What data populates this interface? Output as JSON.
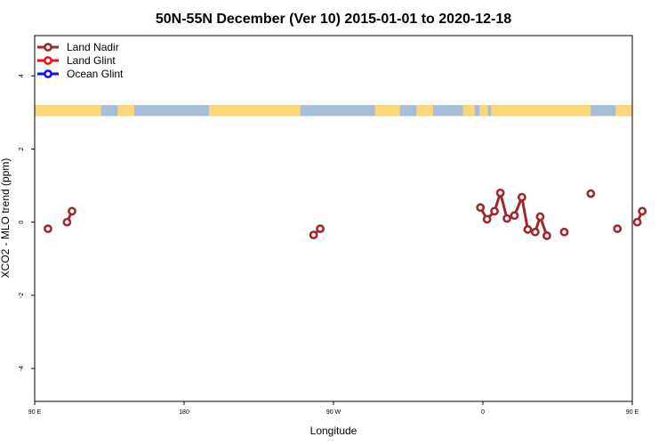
{
  "chart_data": {
    "type": "line",
    "title": "50N-55N December (Ver 10)   2015-01-01 to 2020-12-18",
    "xlabel": "Longitude",
    "ylabel": "XCO2 - MLO trend (ppm)",
    "xlim": [
      90,
      450
    ],
    "ylim": [
      -4.9,
      5.1
    ],
    "x_ticks": [
      {
        "value": 90,
        "label": "90 E"
      },
      {
        "value": 180,
        "label": "180"
      },
      {
        "value": 270,
        "label": "90 W"
      },
      {
        "value": 360,
        "label": "0"
      },
      {
        "value": 450,
        "label": "90 E"
      },
      {
        "value": 540,
        "label": "180"
      }
    ],
    "y_ticks": [
      {
        "value": -4,
        "label": "-4"
      },
      {
        "value": -2,
        "label": "-2"
      },
      {
        "value": 0,
        "label": "0"
      },
      {
        "value": 2,
        "label": "2"
      },
      {
        "value": 4,
        "label": "4"
      }
    ],
    "grid": false,
    "legend_position": "top-left",
    "series": [
      {
        "name": "Land Nadir",
        "color": "#a0282c",
        "points": [
          {
            "x": 98,
            "y": -0.18
          },
          {
            "x": 109.5,
            "y": 0.0
          },
          {
            "x": 112.5,
            "y": 0.3
          },
          {
            "x": 258,
            "y": -0.35
          },
          {
            "x": 262,
            "y": -0.18
          },
          {
            "x": 358.5,
            "y": 0.4
          },
          {
            "x": 362.5,
            "y": 0.08
          },
          {
            "x": 367,
            "y": 0.3
          },
          {
            "x": 370.5,
            "y": 0.8
          },
          {
            "x": 374.5,
            "y": 0.1
          },
          {
            "x": 379,
            "y": 0.18
          },
          {
            "x": 383.5,
            "y": 0.68
          },
          {
            "x": 387,
            "y": -0.2
          },
          {
            "x": 391.5,
            "y": -0.27
          },
          {
            "x": 394.5,
            "y": 0.15
          },
          {
            "x": 398.5,
            "y": -0.37
          },
          {
            "x": 409,
            "y": -0.27
          },
          {
            "x": 425,
            "y": 0.78
          },
          {
            "x": 441,
            "y": -0.18
          },
          {
            "x": 453,
            "y": 0.0
          },
          {
            "x": 456,
            "y": 0.3
          }
        ],
        "segments": [
          [
            0
          ],
          [
            1,
            2
          ],
          [
            3,
            4
          ],
          [
            5,
            6,
            7,
            8,
            9,
            10,
            11,
            12,
            13,
            14,
            15
          ],
          [
            16
          ],
          [
            17
          ],
          [
            18
          ],
          [
            19,
            20
          ]
        ]
      },
      {
        "name": "Land Glint",
        "color": "#ee1111",
        "points": []
      },
      {
        "name": "Ocean Glint",
        "color": "#1111ee",
        "points": []
      }
    ],
    "land_mask_band": {
      "y_range": [
        2.9,
        3.2
      ],
      "ocean_color": "#a7bcd8",
      "land_color": "#fad878",
      "land_spans": [
        [
          90,
          130
        ],
        [
          140,
          150
        ],
        [
          195,
          250
        ],
        [
          295,
          310
        ],
        [
          320,
          330
        ],
        [
          348,
          355
        ],
        [
          358,
          363
        ],
        [
          365,
          425
        ],
        [
          440,
          450
        ]
      ]
    }
  }
}
